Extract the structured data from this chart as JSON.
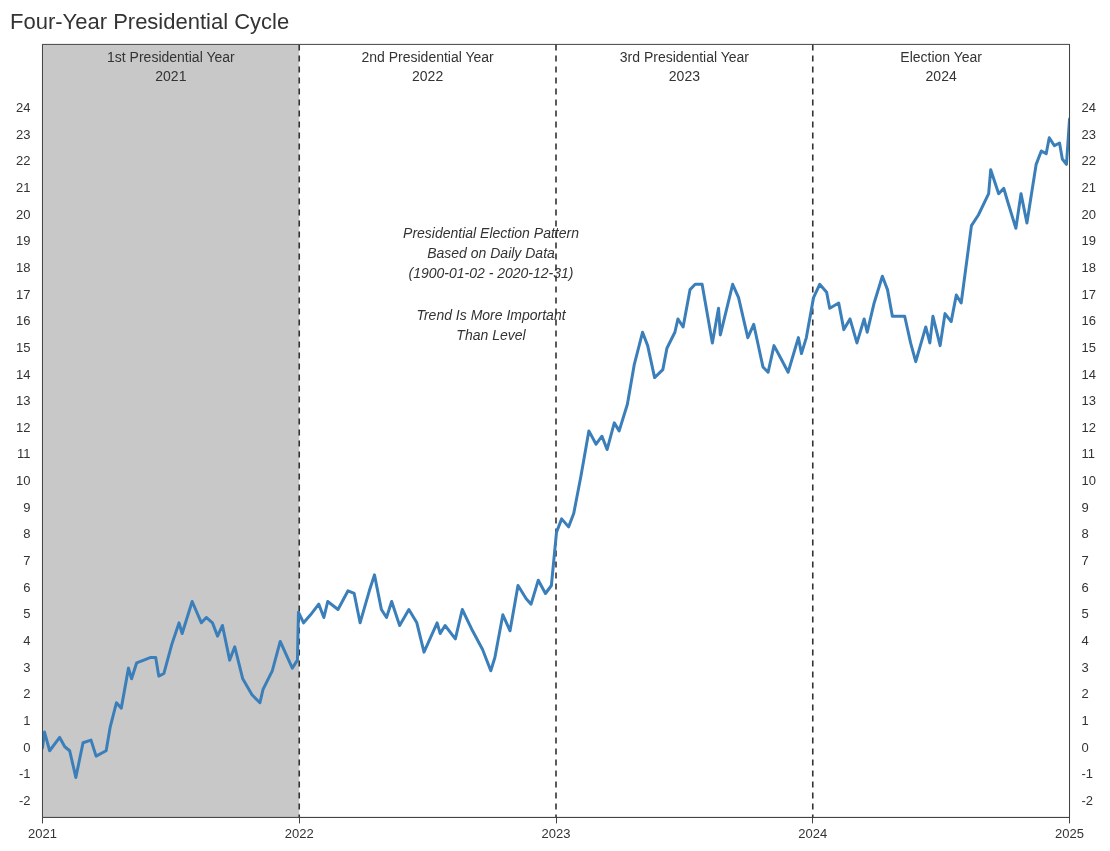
{
  "chart_data": {
    "type": "line",
    "title": "Four-Year Presidential Cycle",
    "xlim": [
      2021,
      2025
    ],
    "xticks": [
      2021,
      2022,
      2023,
      2024,
      2025
    ],
    "ylim": [
      -2.6,
      26.4
    ],
    "yticks": [
      -2,
      -1,
      0,
      1,
      2,
      3,
      4,
      5,
      6,
      7,
      8,
      9,
      10,
      11,
      12,
      13,
      14,
      15,
      16,
      17,
      18,
      19,
      20,
      21,
      22,
      23,
      24
    ],
    "y2lim": [
      -2.6,
      26.4
    ],
    "y2ticks": [
      -2,
      -1,
      0,
      1,
      2,
      3,
      4,
      5,
      6,
      7,
      8,
      9,
      10,
      11,
      12,
      13,
      14,
      15,
      16,
      17,
      18,
      19,
      20,
      21,
      22,
      23,
      24
    ],
    "marker": "none",
    "line_style": "solid",
    "series": [
      {
        "color": "#3b7fba",
        "x": [
          2021.0,
          2021.008,
          2021.028,
          2021.067,
          2021.087,
          2021.106,
          2021.13,
          2021.158,
          2021.189,
          2021.209,
          2021.248,
          2021.264,
          2021.288,
          2021.307,
          2021.335,
          2021.347,
          2021.367,
          2021.422,
          2021.441,
          2021.453,
          2021.473,
          2021.504,
          2021.532,
          2021.544,
          2021.583,
          2021.619,
          2021.638,
          2021.662,
          2021.682,
          2021.701,
          2021.729,
          2021.749,
          2021.78,
          2021.816,
          2021.847,
          2021.859,
          2021.895,
          2021.926,
          2021.954,
          2021.973,
          2021.993,
          2021.997,
          2022.017,
          2022.044,
          2022.076,
          2022.096,
          2022.111,
          2022.151,
          2022.19,
          2022.214,
          2022.237,
          2022.273,
          2022.293,
          2022.32,
          2022.34,
          2022.36,
          2022.391,
          2022.427,
          2022.458,
          2022.486,
          2022.537,
          2022.549,
          2022.568,
          2022.608,
          2022.635,
          2022.675,
          2022.714,
          2022.746,
          2022.762,
          2022.793,
          2022.821,
          2022.852,
          2022.884,
          2022.903,
          2022.931,
          2022.959,
          2022.982,
          2023.002,
          2023.022,
          2023.049,
          2023.069,
          2023.097,
          2023.128,
          2023.156,
          2023.179,
          2023.199,
          2023.227,
          2023.246,
          2023.278,
          2023.305,
          2023.337,
          2023.357,
          2023.384,
          2023.416,
          2023.432,
          2023.463,
          2023.475,
          2023.495,
          2023.522,
          2023.542,
          2023.569,
          2023.609,
          2023.633,
          2023.64,
          2023.688,
          2023.711,
          2023.747,
          2023.77,
          2023.806,
          2023.826,
          2023.849,
          2023.877,
          2023.904,
          2023.944,
          2023.956,
          2023.975,
          2024.003,
          2024.027,
          2024.054,
          2024.066,
          2024.101,
          2024.121,
          2024.145,
          2024.172,
          2024.2,
          2024.212,
          2024.239,
          2024.271,
          2024.291,
          2024.31,
          2024.358,
          2024.381,
          2024.401,
          2024.44,
          2024.456,
          2024.468,
          2024.496,
          2024.515,
          2024.539,
          2024.559,
          2024.578,
          2024.618,
          2024.645,
          2024.685,
          2024.693,
          2024.724,
          2024.744,
          2024.756,
          2024.791,
          2024.811,
          2024.834,
          2024.87,
          2024.89,
          2024.909,
          2024.921,
          2024.941,
          2024.961,
          2024.972,
          2024.988,
          2025.0
        ],
        "values": [
          0.0,
          0.6,
          -0.1,
          0.4,
          0.05,
          -0.1,
          -1.1,
          0.2,
          0.3,
          -0.3,
          -0.1,
          0.8,
          1.7,
          1.5,
          3.0,
          2.6,
          3.2,
          3.4,
          3.4,
          2.7,
          2.8,
          3.9,
          4.7,
          4.3,
          5.5,
          4.7,
          4.9,
          4.7,
          4.2,
          4.6,
          3.3,
          3.8,
          2.6,
          2.0,
          1.7,
          2.2,
          2.9,
          4.0,
          3.4,
          3.0,
          3.3,
          5.1,
          4.7,
          5.0,
          5.4,
          4.9,
          5.5,
          5.2,
          5.9,
          5.8,
          4.7,
          5.9,
          6.5,
          5.2,
          4.9,
          5.5,
          4.6,
          5.2,
          4.7,
          3.6,
          4.7,
          4.3,
          4.6,
          4.1,
          5.2,
          4.4,
          3.7,
          2.9,
          3.4,
          5.0,
          4.4,
          6.1,
          5.6,
          5.4,
          6.3,
          5.8,
          6.1,
          8.1,
          8.6,
          8.3,
          8.8,
          10.2,
          11.9,
          11.4,
          11.7,
          11.2,
          12.2,
          11.9,
          12.9,
          14.4,
          15.6,
          15.1,
          13.9,
          14.2,
          15.0,
          15.6,
          16.1,
          15.8,
          17.2,
          17.4,
          17.4,
          15.2,
          16.5,
          15.5,
          17.4,
          16.9,
          15.4,
          15.9,
          14.3,
          14.1,
          15.1,
          14.6,
          14.1,
          15.4,
          14.8,
          15.4,
          16.9,
          17.4,
          17.1,
          16.5,
          16.7,
          15.7,
          16.1,
          15.2,
          16.1,
          15.6,
          16.7,
          17.7,
          17.2,
          16.2,
          16.2,
          15.2,
          14.5,
          15.8,
          15.2,
          16.2,
          15.1,
          16.3,
          16.0,
          17.0,
          16.7,
          19.6,
          20.0,
          20.8,
          21.7,
          20.8,
          21.0,
          20.6,
          19.5,
          20.8,
          19.7,
          21.9,
          22.4,
          22.3,
          22.9,
          22.6,
          22.7,
          22.1,
          21.9,
          23.6
        ]
      }
    ],
    "bands": [
      {
        "axis": "x",
        "from": 2021,
        "to": 2022,
        "color": "#c8c8c8"
      }
    ],
    "ref_lines": [
      {
        "axis": "x",
        "value": 2022,
        "line_style": "dashed",
        "color": "#333333"
      },
      {
        "axis": "x",
        "value": 2023,
        "line_style": "dashed",
        "color": "#333333"
      },
      {
        "axis": "x",
        "value": 2024,
        "line_style": "dashed",
        "color": "#333333"
      }
    ],
    "annotations": [
      "1st Presidential Year\n2021",
      "2nd Presidential Year\n2022",
      "3rd Presidential Year\n2023",
      "Election Year\n2024",
      "Presidential Election Pattern\nBased on Daily Data\n(1900-01-02 - 2020-12-31)",
      "Trend Is More Important\nThan Level"
    ]
  }
}
